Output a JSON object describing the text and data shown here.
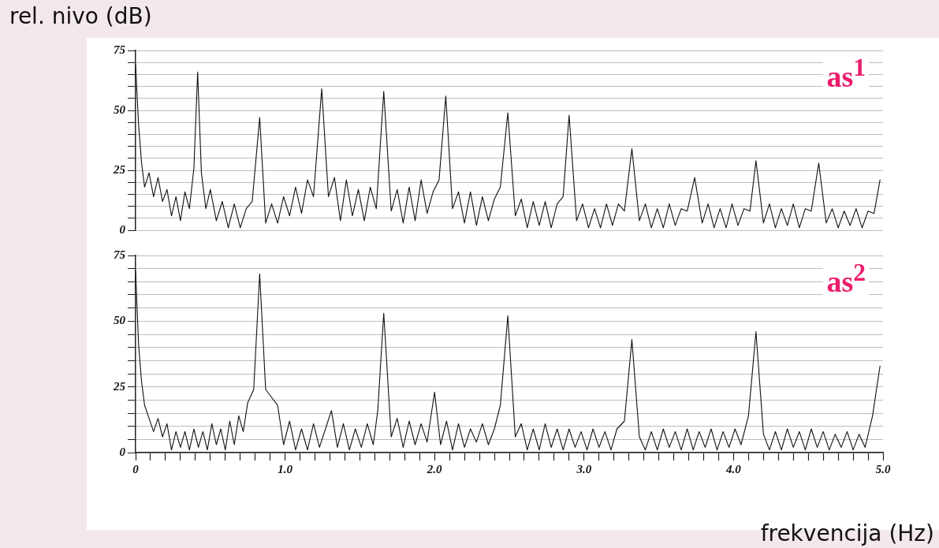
{
  "chart_data": [
    {
      "type": "line",
      "ylabel": "rel. nivo (dB)",
      "annotations": [
        "as$^{1}$"
      ],
      "tick_labels": "y",
      "grid": "y",
      "xlim": [
        0,
        5
      ],
      "ylim": [
        0,
        75
      ],
      "yticks": [
        0,
        {
          "value": 5,
          "label": null
        },
        {
          "value": 10,
          "label": null
        },
        {
          "value": 15,
          "label": null
        },
        {
          "value": 20,
          "label": null
        },
        25,
        {
          "value": 30,
          "label": null
        },
        {
          "value": 35,
          "label": null
        },
        {
          "value": 40,
          "label": null
        },
        {
          "value": 45,
          "label": null
        },
        50,
        {
          "value": 55,
          "label": null
        },
        {
          "value": 60,
          "label": null
        },
        {
          "value": 65,
          "label": null
        },
        {
          "value": 70,
          "label": null
        },
        75
      ],
      "x": [
        0,
        0.02,
        0.04,
        0.06,
        0.09,
        0.12,
        0.15,
        0.18,
        0.21,
        0.24,
        0.27,
        0.3,
        0.33,
        0.36,
        0.39,
        0.415,
        0.44,
        0.47,
        0.5,
        0.54,
        0.58,
        0.62,
        0.66,
        0.7,
        0.74,
        0.78,
        0.83,
        0.87,
        0.91,
        0.95,
        0.99,
        1.03,
        1.07,
        1.11,
        1.15,
        1.19,
        1.245,
        1.29,
        1.33,
        1.37,
        1.41,
        1.45,
        1.49,
        1.53,
        1.57,
        1.61,
        1.66,
        1.71,
        1.75,
        1.79,
        1.83,
        1.87,
        1.91,
        1.95,
        1.99,
        2.03,
        2.075,
        2.12,
        2.16,
        2.2,
        2.24,
        2.28,
        2.32,
        2.36,
        2.4,
        2.44,
        2.49,
        2.54,
        2.58,
        2.62,
        2.66,
        2.7,
        2.74,
        2.78,
        2.82,
        2.86,
        2.9,
        2.95,
        2.99,
        3.03,
        3.07,
        3.11,
        3.15,
        3.19,
        3.23,
        3.27,
        3.32,
        3.37,
        3.41,
        3.45,
        3.49,
        3.53,
        3.57,
        3.61,
        3.65,
        3.69,
        3.74,
        3.79,
        3.83,
        3.87,
        3.91,
        3.95,
        3.99,
        4.03,
        4.07,
        4.11,
        4.15,
        4.2,
        4.24,
        4.28,
        4.32,
        4.36,
        4.4,
        4.44,
        4.48,
        4.52,
        4.57,
        4.62,
        4.66,
        4.7,
        4.74,
        4.78,
        4.82,
        4.86,
        4.9,
        4.94,
        4.98
      ],
      "series": [
        {
          "color": "#111111",
          "values": [
            69,
            44,
            28,
            18,
            24,
            14,
            22,
            12,
            17,
            6,
            14,
            4,
            16,
            9,
            26,
            66,
            24,
            9,
            17,
            4,
            12,
            1,
            11,
            1,
            9,
            12,
            47,
            3,
            11,
            3,
            14,
            6,
            18,
            7,
            21,
            14,
            59,
            14,
            22,
            4,
            21,
            6,
            17,
            4,
            18,
            9,
            58,
            8,
            17,
            3,
            18,
            4,
            21,
            7,
            16,
            21,
            56,
            9,
            16,
            3,
            16,
            2,
            14,
            4,
            13,
            18,
            49,
            6,
            13,
            1,
            12,
            2,
            12,
            1,
            11,
            14,
            48,
            4,
            11,
            1,
            9,
            1,
            11,
            2,
            11,
            8,
            34,
            4,
            11,
            1,
            9,
            1,
            11,
            2,
            9,
            8,
            22,
            3,
            11,
            1,
            9,
            1,
            11,
            2,
            9,
            8,
            29,
            3,
            11,
            1,
            9,
            2,
            11,
            1,
            9,
            8,
            28,
            3,
            9,
            1,
            8,
            2,
            9,
            1,
            8,
            7,
            21
          ]
        }
      ]
    },
    {
      "type": "line",
      "xlabel": "frekvencija (Hz)",
      "annotations": [
        "as$^{2}$"
      ],
      "grid": "y",
      "xlim": [
        0,
        5
      ],
      "ylim": [
        0,
        75
      ],
      "xticks": [
        0,
        {
          "value": 0.1,
          "label": null
        },
        {
          "value": 0.2,
          "label": null
        },
        {
          "value": 0.3,
          "label": null
        },
        {
          "value": 0.4,
          "label": null
        },
        {
          "value": 0.5,
          "label": null
        },
        {
          "value": 0.6,
          "label": null
        },
        {
          "value": 0.7,
          "label": null
        },
        {
          "value": 0.8,
          "label": null
        },
        {
          "value": 0.9,
          "label": null
        },
        {
          "value": 1,
          "label": "1.0"
        },
        {
          "value": 1.1,
          "label": null
        },
        {
          "value": 1.2,
          "label": null
        },
        {
          "value": 1.3,
          "label": null
        },
        {
          "value": 1.4,
          "label": null
        },
        {
          "value": 1.5,
          "label": null
        },
        {
          "value": 1.6,
          "label": null
        },
        {
          "value": 1.7,
          "label": null
        },
        {
          "value": 1.8,
          "label": null
        },
        {
          "value": 1.9,
          "label": null
        },
        {
          "value": 2,
          "label": "2.0"
        },
        {
          "value": 2.1,
          "label": null
        },
        {
          "value": 2.2,
          "label": null
        },
        {
          "value": 2.3,
          "label": null
        },
        {
          "value": 2.4,
          "label": null
        },
        {
          "value": 2.5,
          "label": null
        },
        {
          "value": 2.6,
          "label": null
        },
        {
          "value": 2.7,
          "label": null
        },
        {
          "value": 2.8,
          "label": null
        },
        {
          "value": 2.9,
          "label": null
        },
        {
          "value": 3,
          "label": "3.0"
        },
        {
          "value": 3.1,
          "label": null
        },
        {
          "value": 3.2,
          "label": null
        },
        {
          "value": 3.3,
          "label": null
        },
        {
          "value": 3.4,
          "label": null
        },
        {
          "value": 3.5,
          "label": null
        },
        {
          "value": 3.6,
          "label": null
        },
        {
          "value": 3.7,
          "label": null
        },
        {
          "value": 3.8,
          "label": null
        },
        {
          "value": 3.9,
          "label": null
        },
        {
          "value": 4,
          "label": "4.0"
        },
        {
          "value": 4.1,
          "label": null
        },
        {
          "value": 4.2,
          "label": null
        },
        {
          "value": 4.3,
          "label": null
        },
        {
          "value": 4.4,
          "label": null
        },
        {
          "value": 4.5,
          "label": null
        },
        {
          "value": 4.6,
          "label": null
        },
        {
          "value": 4.7,
          "label": null
        },
        {
          "value": 4.8,
          "label": null
        },
        {
          "value": 4.9,
          "label": null
        },
        {
          "value": 5,
          "label": "5.0"
        }
      ],
      "yticks": [
        0,
        {
          "value": 5,
          "label": null
        },
        {
          "value": 10,
          "label": null
        },
        {
          "value": 15,
          "label": null
        },
        {
          "value": 20,
          "label": null
        },
        25,
        {
          "value": 30,
          "label": null
        },
        {
          "value": 35,
          "label": null
        },
        {
          "value": 40,
          "label": null
        },
        {
          "value": 45,
          "label": null
        },
        50,
        {
          "value": 55,
          "label": null
        },
        {
          "value": 60,
          "label": null
        },
        {
          "value": 65,
          "label": null
        },
        {
          "value": 70,
          "label": null
        },
        75
      ],
      "x": [
        0,
        0.02,
        0.04,
        0.06,
        0.09,
        0.12,
        0.15,
        0.18,
        0.21,
        0.24,
        0.27,
        0.3,
        0.33,
        0.36,
        0.39,
        0.42,
        0.45,
        0.48,
        0.51,
        0.54,
        0.57,
        0.6,
        0.63,
        0.66,
        0.69,
        0.72,
        0.75,
        0.79,
        0.83,
        0.87,
        0.91,
        0.95,
        0.99,
        1.03,
        1.07,
        1.11,
        1.15,
        1.19,
        1.23,
        1.27,
        1.31,
        1.35,
        1.39,
        1.43,
        1.47,
        1.51,
        1.55,
        1.59,
        1.62,
        1.66,
        1.71,
        1.75,
        1.79,
        1.83,
        1.87,
        1.91,
        1.95,
        2,
        2.04,
        2.08,
        2.12,
        2.16,
        2.2,
        2.24,
        2.28,
        2.32,
        2.36,
        2.4,
        2.44,
        2.49,
        2.54,
        2.58,
        2.62,
        2.66,
        2.7,
        2.74,
        2.78,
        2.82,
        2.86,
        2.9,
        2.94,
        2.98,
        3.02,
        3.06,
        3.1,
        3.14,
        3.18,
        3.22,
        3.27,
        3.32,
        3.37,
        3.41,
        3.45,
        3.49,
        3.53,
        3.57,
        3.61,
        3.65,
        3.69,
        3.73,
        3.77,
        3.81,
        3.85,
        3.89,
        3.93,
        3.97,
        4.01,
        4.05,
        4.1,
        4.15,
        4.2,
        4.24,
        4.28,
        4.32,
        4.36,
        4.4,
        4.44,
        4.48,
        4.52,
        4.56,
        4.6,
        4.64,
        4.68,
        4.72,
        4.76,
        4.8,
        4.84,
        4.88,
        4.93,
        4.98
      ],
      "series": [
        {
          "color": "#111111",
          "values": [
            69,
            41,
            27,
            18,
            13,
            8,
            13,
            6,
            11,
            1,
            8,
            2,
            8,
            1,
            9,
            2,
            8,
            1,
            11,
            3,
            9,
            1,
            12,
            3,
            14,
            8,
            19,
            24,
            68,
            24,
            21,
            18,
            3,
            12,
            1,
            9,
            1,
            11,
            2,
            9,
            16,
            2,
            11,
            1,
            9,
            2,
            11,
            3,
            16,
            53,
            6,
            13,
            2,
            12,
            3,
            11,
            4,
            23,
            3,
            12,
            1,
            11,
            2,
            9,
            4,
            11,
            3,
            9,
            18,
            52,
            6,
            11,
            1,
            9,
            1,
            11,
            2,
            9,
            1,
            9,
            2,
            8,
            1,
            9,
            2,
            8,
            1,
            9,
            12,
            43,
            6,
            1,
            8,
            1,
            9,
            2,
            8,
            1,
            9,
            1,
            8,
            2,
            9,
            1,
            8,
            2,
            9,
            3,
            14,
            46,
            7,
            1,
            8,
            1,
            9,
            2,
            8,
            1,
            9,
            2,
            8,
            1,
            7,
            2,
            8,
            1,
            7,
            2,
            14,
            33
          ]
        }
      ]
    }
  ]
}
